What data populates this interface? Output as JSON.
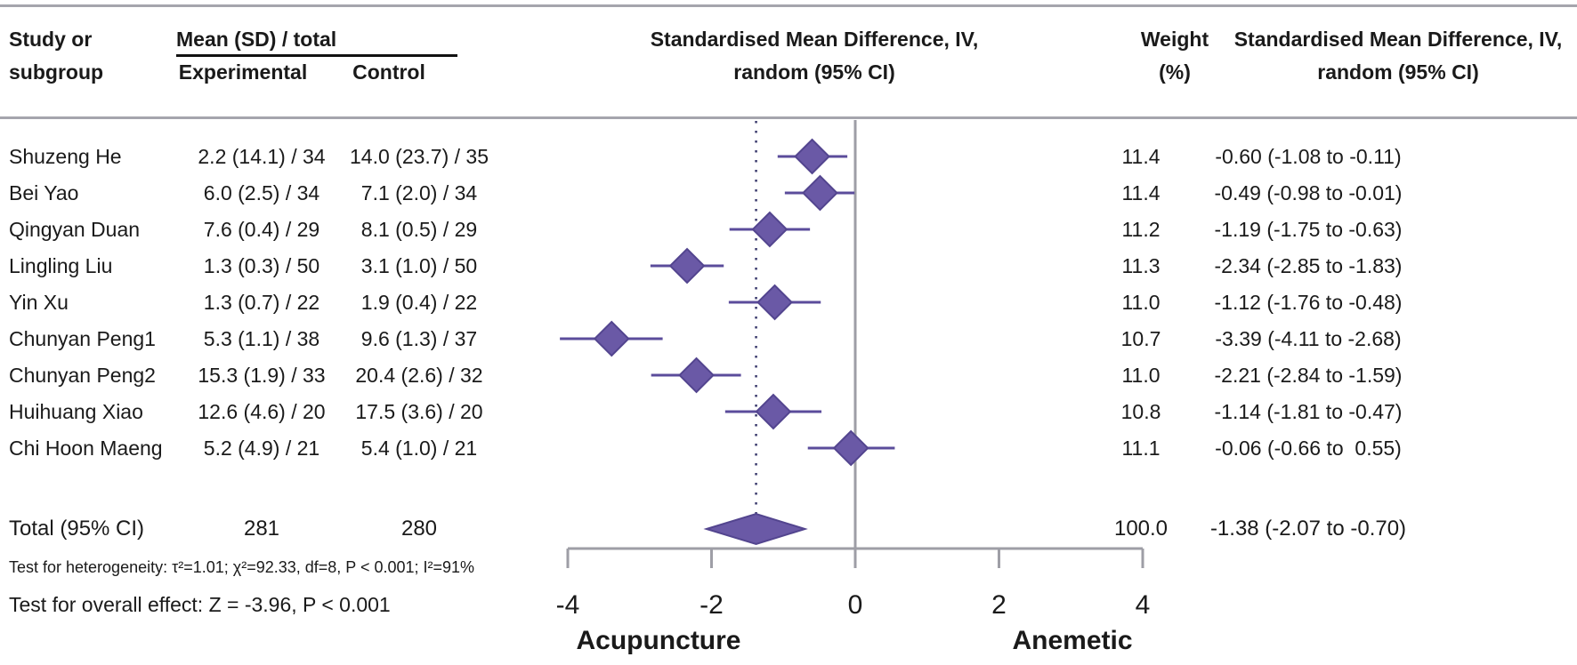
{
  "chart_data": {
    "type": "forest_plot",
    "columns": {
      "study_line1": "Study or",
      "study_line2": "subgroup",
      "mean_sd_total": "Mean (SD) / total",
      "experimental": "Experimental",
      "control": "Control",
      "smd_plot_line1": "Standardised Mean Difference, IV,",
      "smd_plot_line2": "random (95% CI)",
      "weight_line1": "Weight",
      "weight_line2": "(%)",
      "smd_text_line1": "Standardised Mean Difference, IV,",
      "smd_text_line2": "random (95% CI)"
    },
    "studies": [
      {
        "name": "Shuzeng He",
        "experimental": "2.2 (14.1) / 34",
        "control": "14.0 (23.7) / 35",
        "weight": "11.4",
        "smd": -0.6,
        "ci_low": -1.08,
        "ci_high": -0.11,
        "smd_label": "-0.60 (-1.08 to -0.11)"
      },
      {
        "name": "Bei Yao",
        "experimental": "6.0 (2.5) / 34",
        "control": "7.1 (2.0) / 34",
        "weight": "11.4",
        "smd": -0.49,
        "ci_low": -0.98,
        "ci_high": -0.01,
        "smd_label": "-0.49 (-0.98 to -0.01)"
      },
      {
        "name": "Qingyan Duan",
        "experimental": "7.6 (0.4) / 29",
        "control": "8.1 (0.5) / 29",
        "weight": "11.2",
        "smd": -1.19,
        "ci_low": -1.75,
        "ci_high": -0.63,
        "smd_label": "-1.19 (-1.75 to -0.63)"
      },
      {
        "name": "Lingling Liu",
        "experimental": "1.3 (0.3) / 50",
        "control": "3.1 (1.0) / 50",
        "weight": "11.3",
        "smd": -2.34,
        "ci_low": -2.85,
        "ci_high": -1.83,
        "smd_label": "-2.34 (-2.85 to -1.83)"
      },
      {
        "name": "Yin Xu",
        "experimental": "1.3 (0.7) / 22",
        "control": "1.9 (0.4) / 22",
        "weight": "11.0",
        "smd": -1.12,
        "ci_low": -1.76,
        "ci_high": -0.48,
        "smd_label": "-1.12 (-1.76 to -0.48)"
      },
      {
        "name": "Chunyan Peng1",
        "experimental": "5.3 (1.1) / 38",
        "control": "9.6 (1.3) / 37",
        "weight": "10.7",
        "smd": -3.39,
        "ci_low": -4.11,
        "ci_high": -2.68,
        "smd_label": "-3.39 (-4.11 to -2.68)"
      },
      {
        "name": "Chunyan Peng2",
        "experimental": "15.3 (1.9) / 33",
        "control": "20.4 (2.6) / 32",
        "weight": "11.0",
        "smd": -2.21,
        "ci_low": -2.84,
        "ci_high": -1.59,
        "smd_label": "-2.21 (-2.84 to -1.59)"
      },
      {
        "name": "Huihuang Xiao",
        "experimental": "12.6 (4.6) / 20",
        "control": "17.5 (3.6) / 20",
        "weight": "10.8",
        "smd": -1.14,
        "ci_low": -1.81,
        "ci_high": -0.47,
        "smd_label": "-1.14 (-1.81 to -0.47)"
      },
      {
        "name": "Chi Hoon Maeng",
        "experimental": "5.2 (4.9) / 21",
        "control": "5.4 (1.0) / 21",
        "weight": "11.1",
        "smd": -0.06,
        "ci_low": -0.66,
        "ci_high": 0.55,
        "smd_label": "-0.06 (-0.66 to  0.55)"
      }
    ],
    "total": {
      "label": "Total (95% CI)",
      "experimental": "281",
      "control": "280",
      "weight": "100.0",
      "smd": -1.38,
      "ci_low": -2.07,
      "ci_high": -0.7,
      "smd_label": "-1.38 (-2.07 to -0.70)"
    },
    "axis": {
      "ticks": [
        -4,
        -2,
        0,
        2,
        4
      ],
      "range": [
        -4,
        4
      ],
      "zero_ref": 0,
      "overall_effect": -1.38,
      "left_label": "Acupuncture",
      "right_label": "Anemetic"
    },
    "heterogeneity": "Test for heterogeneity: τ²=1.01; χ²=92.33, df=8, P < 0.001; I²=91%",
    "overall_effect_test": "Test for overall effect: Z = -3.96, P < 0.001"
  },
  "colors": {
    "diamond_fill": "#6a59a6",
    "diamond_stroke": "#53458f",
    "ci_line": "#5b4c9b",
    "rule_gray": "#a5a5ad",
    "axis_gray": "#9e9ea6",
    "overall_dotted": "#3c3c6e",
    "header_rule_black": "#111111"
  }
}
